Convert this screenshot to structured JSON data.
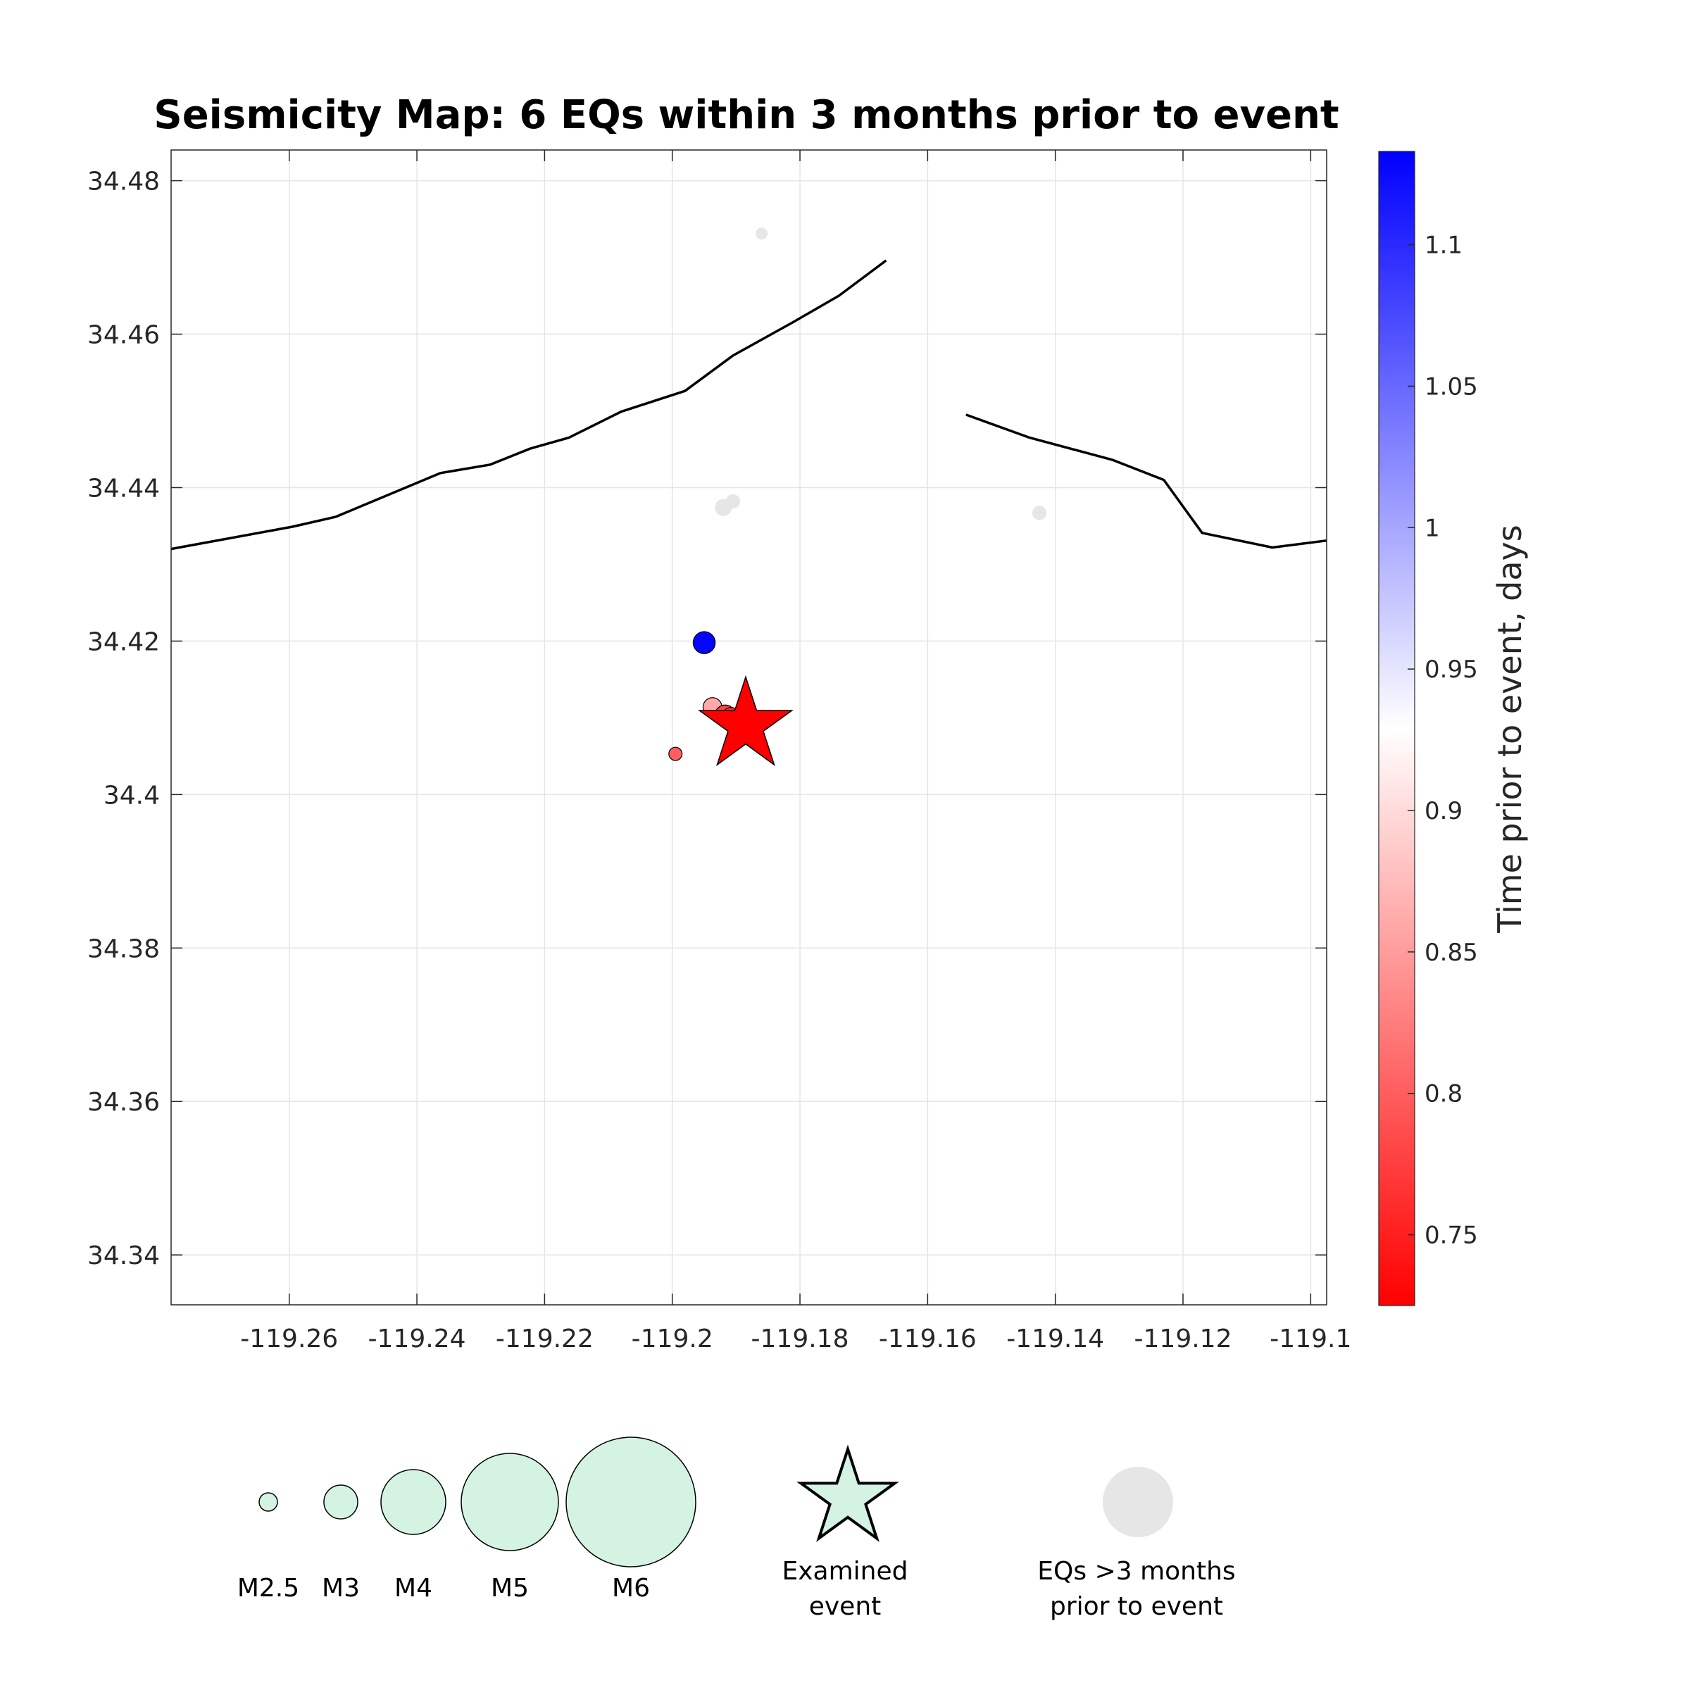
{
  "chart_data": {
    "type": "scatter",
    "title": "Seismicity Map: 6 EQs within 3 months prior to event",
    "xlabel": "",
    "ylabel": "",
    "xlim": [
      -119.2785,
      -119.0975
    ],
    "ylim": [
      34.3335,
      34.484
    ],
    "xticks": [
      {
        "value": -119.26,
        "label": "-119.26"
      },
      {
        "value": -119.24,
        "label": "-119.24"
      },
      {
        "value": -119.22,
        "label": "-119.22"
      },
      {
        "value": -119.2,
        "label": "-119.2"
      },
      {
        "value": -119.18,
        "label": "-119.18"
      },
      {
        "value": -119.16,
        "label": "-119.16"
      },
      {
        "value": -119.14,
        "label": "-119.14"
      },
      {
        "value": -119.12,
        "label": "-119.12"
      },
      {
        "value": -119.1,
        "label": "-119.1"
      }
    ],
    "yticks": [
      {
        "value": 34.34,
        "label": "34.34"
      },
      {
        "value": 34.36,
        "label": "34.36"
      },
      {
        "value": 34.38,
        "label": "34.38"
      },
      {
        "value": 34.4,
        "label": "34.4"
      },
      {
        "value": 34.42,
        "label": "34.42"
      },
      {
        "value": 34.44,
        "label": "34.44"
      },
      {
        "value": 34.46,
        "label": "34.46"
      },
      {
        "value": 34.48,
        "label": "34.48"
      }
    ],
    "grid": true,
    "fault_lines": [
      [
        [
          -119.2785,
          34.432
        ],
        [
          -119.2595,
          34.4349
        ],
        [
          -119.2527,
          34.4362
        ],
        [
          -119.2363,
          34.4419
        ],
        [
          -119.2285,
          34.443
        ],
        [
          -119.2222,
          34.4451
        ],
        [
          -119.2162,
          34.4465
        ],
        [
          -119.208,
          34.4499
        ],
        [
          -119.198,
          34.4526
        ],
        [
          -119.1905,
          34.4572
        ],
        [
          -119.181,
          34.4616
        ],
        [
          -119.1739,
          34.465
        ],
        [
          -119.1665,
          34.4696
        ]
      ],
      [
        [
          -119.154,
          34.4495
        ],
        [
          -119.144,
          34.4465
        ],
        [
          -119.131,
          34.4436
        ],
        [
          -119.123,
          34.441
        ],
        [
          -119.117,
          34.4341
        ],
        [
          -119.106,
          34.4322
        ],
        [
          -119.0975,
          34.4331
        ]
      ]
    ],
    "series": [
      {
        "name": "EQs >3 months prior to event",
        "color": "#e6e6e6",
        "points": [
          {
            "x": -119.186,
            "y": 34.4731,
            "mag": 1.4
          },
          {
            "x": -119.192,
            "y": 34.4374,
            "mag": 2.0
          },
          {
            "x": -119.1905,
            "y": 34.4382,
            "mag": 1.7
          },
          {
            "x": -119.1425,
            "y": 34.4367,
            "mag": 1.7
          }
        ]
      },
      {
        "name": "EQs within 3 months prior to event",
        "points": [
          {
            "x": -119.195,
            "y": 34.4198,
            "mag": 2.3,
            "days": 1.13
          },
          {
            "x": -119.1937,
            "y": 34.4114,
            "mag": 2.0,
            "days": 0.86
          },
          {
            "x": -119.1917,
            "y": 34.4103,
            "mag": 2.2,
            "days": 0.78
          },
          {
            "x": -119.1908,
            "y": 34.4102,
            "mag": 1.9,
            "days": 0.76
          },
          {
            "x": -119.1892,
            "y": 34.4107,
            "mag": 1.5,
            "days": 0.74
          },
          {
            "x": -119.1995,
            "y": 34.4053,
            "mag": 1.4,
            "days": 0.8
          }
        ]
      }
    ],
    "examined_event": {
      "x": -119.1885,
      "y": 34.409,
      "color": "#ff0000"
    },
    "colorbar": {
      "label": "Time prior to event, days",
      "range": [
        0.725,
        1.133
      ],
      "colors": [
        "#ff0000",
        "#ffffff",
        "#0000ff"
      ],
      "ticks": [
        {
          "value": 0.75,
          "label": "0.75"
        },
        {
          "value": 0.8,
          "label": "0.8"
        },
        {
          "value": 0.85,
          "label": "0.85"
        },
        {
          "value": 0.9,
          "label": "0.9"
        },
        {
          "value": 0.95,
          "label": "0.95"
        },
        {
          "value": 1,
          "label": "1"
        },
        {
          "value": 1.05,
          "label": "1.05"
        },
        {
          "value": 1.1,
          "label": "1.1"
        }
      ]
    },
    "legend": {
      "magnitudes": [
        {
          "label": "M2.5",
          "mag": 2.5
        },
        {
          "label": "M3",
          "mag": 3
        },
        {
          "label": "M4",
          "mag": 4
        },
        {
          "label": "M5",
          "mag": 5
        },
        {
          "label": "M6",
          "mag": 6
        }
      ],
      "magnitude_fill": "#d4f3e2",
      "examined_lines": [
        "Examined",
        "event"
      ],
      "prior_lines": [
        "EQs >3 months",
        "prior to event"
      ],
      "prior_color": "#e6e6e6"
    }
  }
}
